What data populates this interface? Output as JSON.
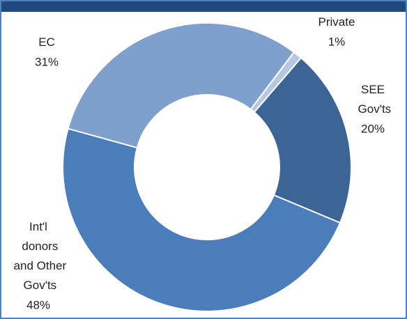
{
  "chart_data": {
    "type": "donut",
    "categories": [
      "EC",
      "Private",
      "SEE Gov'ts",
      "Int'l donors and Other Gov'ts"
    ],
    "values": [
      31,
      1,
      20,
      48
    ],
    "value_labels": [
      "31%",
      "1%",
      "20%",
      "48%"
    ],
    "colors": [
      "#7f9fcc",
      "#b6c7e4",
      "#3c6495",
      "#4a7dba"
    ]
  }
}
